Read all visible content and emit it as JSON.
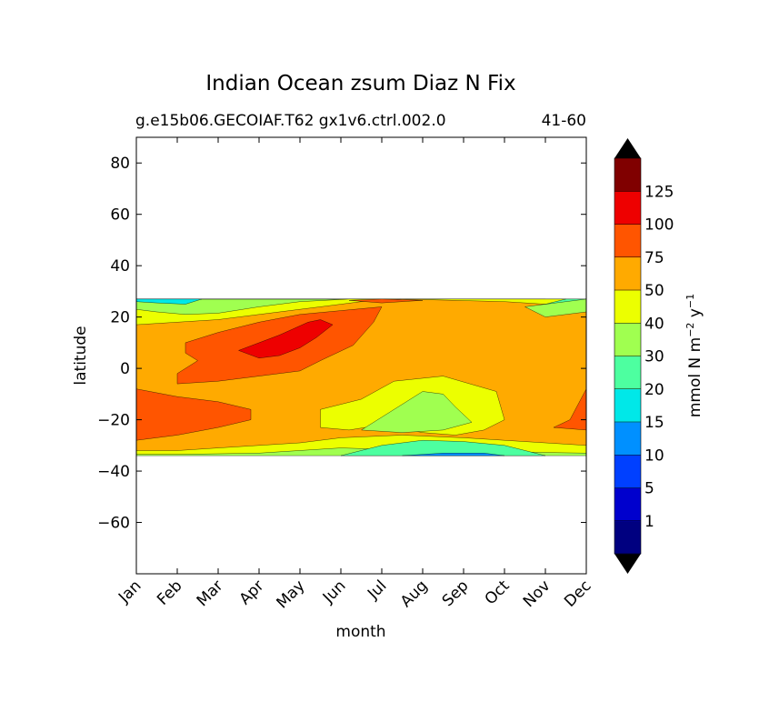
{
  "chart_data": {
    "type": "heatmap",
    "subtype": "filled-contour",
    "title": "Indian Ocean zsum Diaz N Fix",
    "subtitle_left": "g.e15b06.GECOIAF.T62 gx1v6.ctrl.002.0",
    "subtitle_right": "41-60",
    "xlabel": "month",
    "ylabel": "latitude",
    "x_categories": [
      "Jan",
      "Feb",
      "Mar",
      "Apr",
      "May",
      "Jun",
      "Jul",
      "Aug",
      "Sep",
      "Oct",
      "Nov",
      "Dec"
    ],
    "ylim": [
      -80,
      90
    ],
    "yticks": [
      80,
      60,
      40,
      20,
      0,
      -20,
      -40,
      -60
    ],
    "ytick_labels": [
      "80",
      "60",
      "40",
      "20",
      "0",
      "−20",
      "−40",
      "−60"
    ],
    "data_lat_range": [
      -34,
      27
    ],
    "contour_levels": [
      0,
      1,
      5,
      10,
      15,
      20,
      30,
      40,
      50,
      75,
      100,
      125,
      150
    ],
    "colorbar": {
      "label_parts": [
        "mmol N m",
        "−2",
        " y",
        "−1"
      ],
      "tick_labels": [
        "1",
        "5",
        "10",
        "15",
        "20",
        "30",
        "40",
        "50",
        "75",
        "100",
        "125"
      ],
      "colors": [
        "#000080",
        "#0000cd",
        "#0040ff",
        "#0090ff",
        "#00e8e8",
        "#4dffa0",
        "#a0ff50",
        "#ecff00",
        "#ffaa00",
        "#ff5500",
        "#ee0000",
        "#800000"
      ],
      "extend_colors": {
        "under": "#000000",
        "over": "#000000"
      }
    },
    "regions": [
      {
        "level": "30-40",
        "points": [
          [
            0,
            27
          ],
          [
            2,
            27
          ],
          [
            3,
            27
          ],
          [
            4,
            27
          ],
          [
            6,
            27
          ],
          [
            8,
            27
          ],
          [
            10,
            27
          ],
          [
            11,
            27
          ],
          [
            11,
            20
          ],
          [
            11,
            10
          ],
          [
            11,
            0
          ],
          [
            11,
            -10
          ],
          [
            11,
            -20
          ],
          [
            11,
            -30
          ],
          [
            11,
            -34
          ],
          [
            10,
            -34
          ],
          [
            8,
            -34
          ],
          [
            6,
            -34
          ],
          [
            4,
            -34
          ],
          [
            2,
            -34
          ],
          [
            0,
            -34
          ]
        ]
      },
      {
        "level": "20-30",
        "points": [
          [
            0,
            27
          ],
          [
            11,
            27
          ],
          [
            11,
            20
          ],
          [
            10.8,
            21
          ],
          [
            10.3,
            22
          ],
          [
            10,
            24
          ],
          [
            10,
            27
          ],
          [
            0,
            27
          ]
        ]
      },
      {
        "level": "15-20",
        "points": [
          [
            0,
            27
          ],
          [
            1.6,
            27
          ],
          [
            1.2,
            25
          ],
          [
            0.5,
            25.5
          ],
          [
            0,
            26
          ],
          [
            0,
            27
          ]
        ]
      },
      {
        "level": "40-50",
        "points": [
          [
            0,
            23
          ],
          [
            0.5,
            22
          ],
          [
            1.2,
            21
          ],
          [
            2,
            21.5
          ],
          [
            3,
            24
          ],
          [
            4,
            26
          ],
          [
            5.2,
            27
          ],
          [
            10.5,
            27
          ],
          [
            10,
            25
          ],
          [
            9.5,
            23.5
          ],
          [
            10,
            21
          ],
          [
            10.5,
            21.5
          ],
          [
            11,
            22
          ],
          [
            11,
            -33
          ],
          [
            9,
            -32.5
          ],
          [
            7,
            -32
          ],
          [
            5,
            -31
          ],
          [
            3,
            -33
          ],
          [
            1,
            -33.5
          ],
          [
            0,
            -33.5
          ]
        ]
      },
      {
        "level": "50-75",
        "points": [
          [
            0,
            17
          ],
          [
            1,
            18
          ],
          [
            2,
            19
          ],
          [
            3,
            21
          ],
          [
            4.5,
            24
          ],
          [
            5.5,
            26
          ],
          [
            6.5,
            27
          ],
          [
            9,
            26
          ],
          [
            10,
            25
          ],
          [
            11,
            25
          ],
          [
            11,
            -30
          ],
          [
            10,
            -29
          ],
          [
            9,
            -28
          ],
          [
            8,
            -27
          ],
          [
            6.5,
            -26
          ],
          [
            5,
            -27
          ],
          [
            4,
            -29
          ],
          [
            3,
            -30
          ],
          [
            2,
            -31
          ],
          [
            1,
            -32
          ],
          [
            0,
            -32
          ]
        ]
      },
      {
        "level": "40-50",
        "points": [
          [
            4.5,
            -23
          ],
          [
            4.5,
            -16
          ],
          [
            5.5,
            -12
          ],
          [
            6.3,
            -5
          ],
          [
            7.5,
            -3
          ],
          [
            8.8,
            -9
          ],
          [
            9,
            -20
          ],
          [
            8.5,
            -24
          ],
          [
            7.8,
            -26
          ],
          [
            7,
            -25
          ],
          [
            6,
            -22
          ],
          [
            5.2,
            -24
          ]
        ]
      },
      {
        "level": "30-40",
        "points": [
          [
            5.5,
            -24
          ],
          [
            6.3,
            -16
          ],
          [
            7,
            -9
          ],
          [
            7.5,
            -10
          ],
          [
            7.8,
            -15
          ],
          [
            8.2,
            -21
          ],
          [
            7.5,
            -24
          ],
          [
            6.5,
            -25
          ]
        ]
      },
      {
        "level": "75-100",
        "points": [
          [
            1.2,
            10
          ],
          [
            2,
            14
          ],
          [
            3,
            18
          ],
          [
            4,
            21
          ],
          [
            5,
            22.5
          ],
          [
            6,
            24
          ],
          [
            5.8,
            18
          ],
          [
            5.3,
            9
          ],
          [
            4.5,
            3
          ],
          [
            4,
            -1
          ],
          [
            3,
            -3
          ],
          [
            2,
            -5
          ],
          [
            1,
            -6
          ],
          [
            1,
            -2
          ],
          [
            1.5,
            3
          ],
          [
            1.2,
            6
          ]
        ]
      },
      {
        "level": "100-125",
        "points": [
          [
            2.5,
            7
          ],
          [
            3,
            10
          ],
          [
            3.5,
            13
          ],
          [
            4.2,
            18
          ],
          [
            4.5,
            19
          ],
          [
            4.8,
            17
          ],
          [
            4.4,
            12
          ],
          [
            4,
            8
          ],
          [
            3.5,
            5
          ],
          [
            3,
            4
          ]
        ]
      },
      {
        "level": "75-100",
        "points": [
          [
            0,
            -8
          ],
          [
            1,
            -11
          ],
          [
            2,
            -13
          ],
          [
            2.8,
            -16
          ],
          [
            2.8,
            -20
          ],
          [
            2,
            -23
          ],
          [
            1,
            -26
          ],
          [
            0,
            -28
          ]
        ]
      },
      {
        "level": "75-100",
        "points": [
          [
            11,
            -8
          ],
          [
            10.8,
            -14
          ],
          [
            10.6,
            -20
          ],
          [
            10.2,
            -23
          ],
          [
            11,
            -24
          ]
        ]
      },
      {
        "level": "75-100",
        "points": [
          [
            5.2,
            26.5
          ],
          [
            6,
            27
          ],
          [
            7,
            26.5
          ],
          [
            6,
            25.5
          ]
        ]
      },
      {
        "level": "30-40",
        "points": [
          [
            9.5,
            24
          ],
          [
            10.5,
            26
          ],
          [
            11,
            27
          ],
          [
            11,
            22
          ],
          [
            10,
            20
          ]
        ]
      },
      {
        "level": "20-30",
        "points": [
          [
            5,
            -34
          ],
          [
            6,
            -30
          ],
          [
            7,
            -28
          ],
          [
            8,
            -28.5
          ],
          [
            9,
            -30
          ],
          [
            10,
            -34
          ]
        ]
      },
      {
        "level": "10-15",
        "points": [
          [
            6.5,
            -34
          ],
          [
            7.5,
            -33
          ],
          [
            8.5,
            -33
          ],
          [
            9,
            -34
          ]
        ]
      }
    ]
  }
}
